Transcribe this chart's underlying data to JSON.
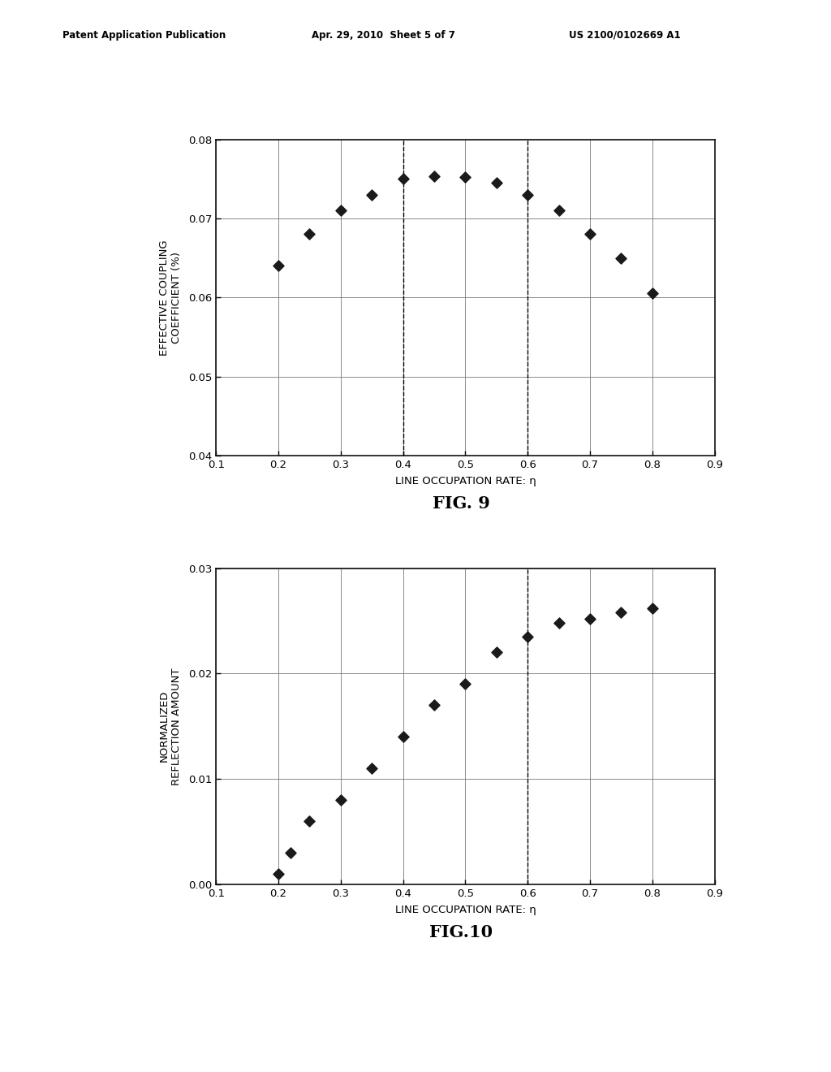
{
  "fig9": {
    "x": [
      0.2,
      0.25,
      0.3,
      0.35,
      0.4,
      0.45,
      0.5,
      0.55,
      0.6,
      0.65,
      0.7,
      0.75,
      0.8
    ],
    "y": [
      0.064,
      0.068,
      0.071,
      0.073,
      0.075,
      0.0753,
      0.0752,
      0.0745,
      0.073,
      0.071,
      0.068,
      0.065,
      0.0605
    ],
    "xlabel": "LINE OCCUPATION RATE: η",
    "ylabel": "EFFECTIVE COUPLING\nCOEFFICIENT (%)",
    "xlim": [
      0.1,
      0.9
    ],
    "ylim": [
      0.04,
      0.08
    ],
    "yticks": [
      0.04,
      0.05,
      0.06,
      0.07,
      0.08
    ],
    "xticks": [
      0.1,
      0.2,
      0.3,
      0.4,
      0.5,
      0.6,
      0.7,
      0.8,
      0.9
    ],
    "dashed_vlines": [
      0.4,
      0.6
    ],
    "caption": "FIG. 9"
  },
  "fig10": {
    "x": [
      0.2,
      0.22,
      0.25,
      0.3,
      0.35,
      0.4,
      0.45,
      0.5,
      0.55,
      0.6,
      0.65,
      0.7,
      0.75,
      0.8
    ],
    "y": [
      0.001,
      0.003,
      0.006,
      0.008,
      0.011,
      0.014,
      0.017,
      0.019,
      0.022,
      0.0235,
      0.0248,
      0.0252,
      0.0258,
      0.0262
    ],
    "xlabel": "LINE OCCUPATION RATE: η",
    "ylabel": "NORMALIZED\nREFLECTION AMOUNT",
    "xlim": [
      0.1,
      0.9
    ],
    "ylim": [
      0.0,
      0.03
    ],
    "yticks": [
      0.0,
      0.01,
      0.02,
      0.03
    ],
    "xticks": [
      0.1,
      0.2,
      0.3,
      0.4,
      0.5,
      0.6,
      0.7,
      0.8,
      0.9
    ],
    "dashed_vlines": [
      0.6
    ],
    "caption": "FIG.10"
  },
  "header_left": "Patent Application Publication",
  "header_mid": "Apr. 29, 2010  Sheet 5 of 7",
  "header_right": "US 2100/0102669 A1",
  "bg_color": "#ffffff",
  "marker_color": "#1a1a1a",
  "grid_color": "#777777",
  "axis_color": "#111111"
}
